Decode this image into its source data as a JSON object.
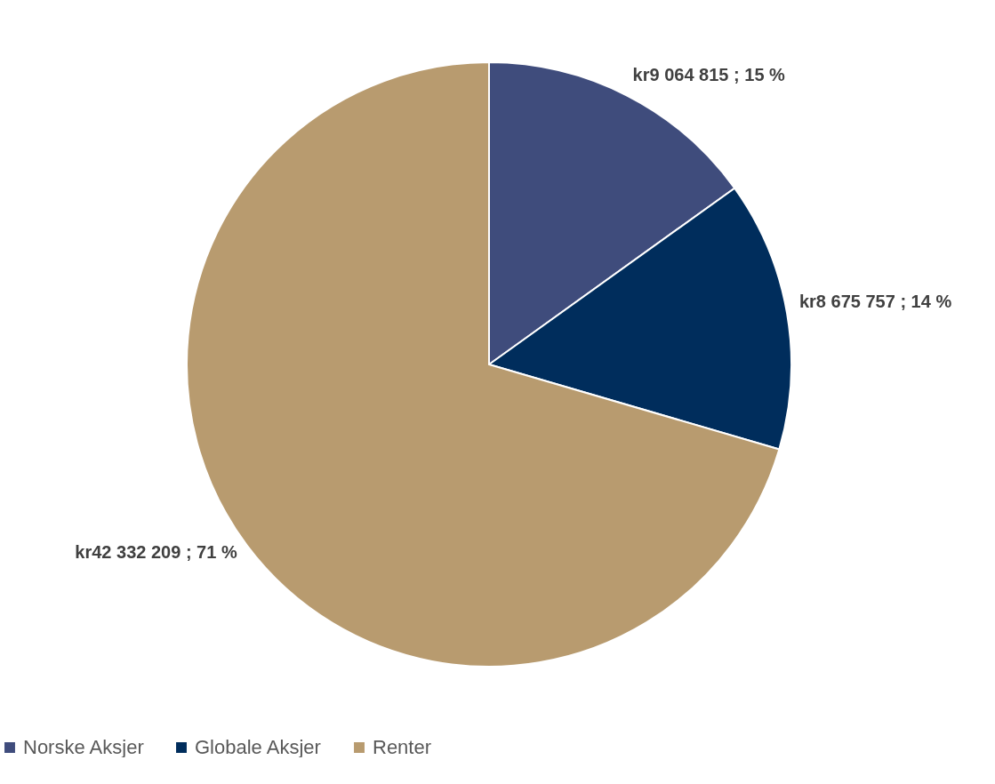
{
  "chart_data": {
    "type": "pie",
    "categories": [
      "Norske Aksjer",
      "Globale Aksjer",
      "Renter"
    ],
    "values": [
      9064815,
      8675757,
      42332209
    ],
    "colors": [
      "#3f4c7c",
      "#002d5c",
      "#b89b6f"
    ],
    "value_labels": [
      "kr9 064 815 ; 15 %",
      "kr8 675 757 ; 14 %",
      "kr42 332 209 ; 71 %"
    ],
    "legend": "bottom"
  }
}
